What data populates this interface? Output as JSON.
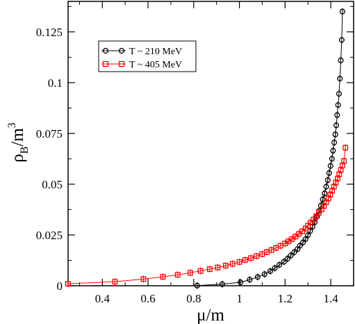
{
  "chart_data": {
    "type": "line",
    "title": "",
    "xlabel": {
      "main": "μ",
      "sep": "/",
      "den": "m"
    },
    "ylabel": {
      "main": "ρ",
      "sub": "B",
      "sep": "/",
      "den": "m",
      "sup": "3"
    },
    "xlim": [
      0.25,
      1.5
    ],
    "ylim": [
      0,
      0.14
    ],
    "xticks": [
      0.4,
      0.6,
      0.8,
      1.0,
      1.2,
      1.4
    ],
    "xtick_labels": [
      "0.4",
      "0.6",
      "0.8",
      "1",
      "1.2",
      "1.4"
    ],
    "yticks": [
      0,
      0.025,
      0.05,
      0.075,
      0.1,
      0.125
    ],
    "ytick_labels": [
      "0",
      "0.025",
      "0.05",
      "0.075",
      "0.1",
      "0.125"
    ],
    "grid": false,
    "legend_position": "top-left",
    "series": [
      {
        "name": "T ~ 210 MeV",
        "color": "#000000",
        "marker": "circle",
        "x": [
          0.815,
          0.925,
          1.005,
          1.045,
          1.08,
          1.11,
          1.135,
          1.155,
          1.175,
          1.195,
          1.21,
          1.225,
          1.24,
          1.255,
          1.265,
          1.278,
          1.29,
          1.3,
          1.31,
          1.32,
          1.33,
          1.34,
          1.348,
          1.357,
          1.365,
          1.373,
          1.38,
          1.387,
          1.393,
          1.399,
          1.405,
          1.41,
          1.415,
          1.42,
          1.424,
          1.428,
          1.432,
          1.436,
          1.44,
          1.444,
          1.448,
          1.451
        ],
        "y": [
          0.0001,
          0.0008,
          0.0017,
          0.003,
          0.0043,
          0.0057,
          0.0072,
          0.0087,
          0.0103,
          0.0118,
          0.0133,
          0.0149,
          0.0165,
          0.0181,
          0.0197,
          0.0213,
          0.023,
          0.0249,
          0.027,
          0.0291,
          0.0313,
          0.034,
          0.0368,
          0.0395,
          0.0425,
          0.0455,
          0.0488,
          0.052,
          0.0555,
          0.059,
          0.0625,
          0.0665,
          0.0705,
          0.0745,
          0.079,
          0.084,
          0.089,
          0.0945,
          0.102,
          0.111,
          0.121,
          0.135
        ],
        "error_bars": true
      },
      {
        "name": "T ~ 405 MeV",
        "color": "#ff0000",
        "marker": "square",
        "x": [
          0.25,
          0.455,
          0.58,
          0.665,
          0.73,
          0.785,
          0.83,
          0.87,
          0.905,
          0.94,
          0.97,
          1.0,
          1.025,
          1.05,
          1.075,
          1.1,
          1.12,
          1.14,
          1.16,
          1.18,
          1.2,
          1.215,
          1.23,
          1.245,
          1.26,
          1.275,
          1.29,
          1.3,
          1.312,
          1.324,
          1.336,
          1.348,
          1.36,
          1.37,
          1.38,
          1.39,
          1.398,
          1.406,
          1.414,
          1.422,
          1.43,
          1.437,
          1.444,
          1.451,
          1.458,
          1.464
        ],
        "y": [
          0.001,
          0.002,
          0.0033,
          0.0044,
          0.0054,
          0.0064,
          0.0073,
          0.0082,
          0.009,
          0.0099,
          0.0108,
          0.0117,
          0.0127,
          0.0136,
          0.0146,
          0.0156,
          0.0166,
          0.0176,
          0.0186,
          0.0197,
          0.0208,
          0.0219,
          0.023,
          0.0242,
          0.0255,
          0.0268,
          0.0282,
          0.0296,
          0.0311,
          0.0326,
          0.0342,
          0.0359,
          0.0376,
          0.0393,
          0.0411,
          0.043,
          0.0449,
          0.0468,
          0.0488,
          0.0508,
          0.0528,
          0.0549,
          0.057,
          0.0592,
          0.0614,
          0.068
        ],
        "error_bars": true
      }
    ]
  }
}
